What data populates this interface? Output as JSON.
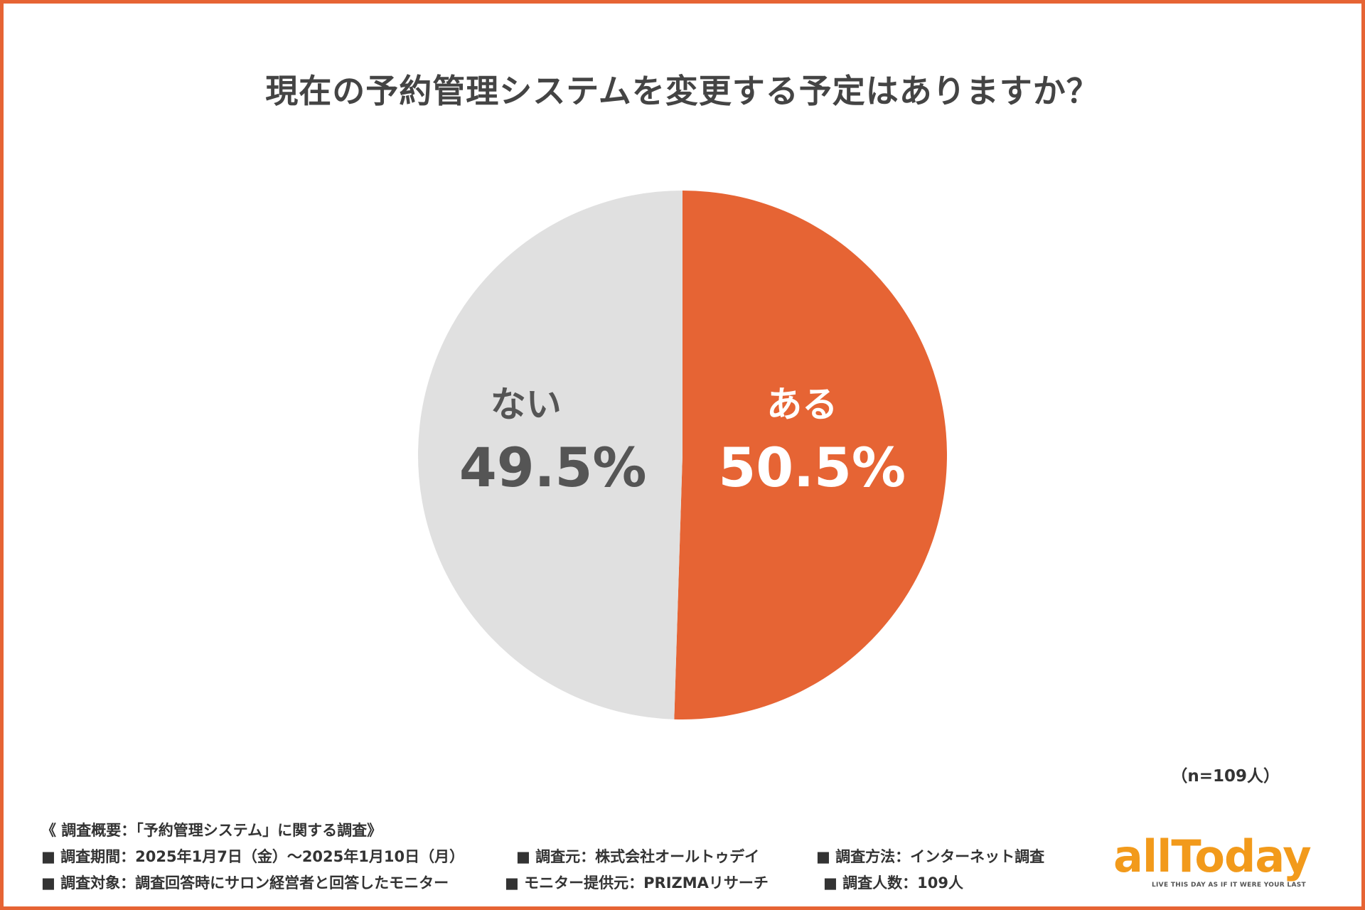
{
  "title": "現在の予約管理システムを変更する予定はありますか？",
  "chart_data": {
    "type": "pie",
    "title": "現在の予約管理システムを変更する予定はありますか？",
    "start": "12 o'clock, clockwise",
    "slices": [
      {
        "label": "ある",
        "value": 50.5,
        "display": "50.5%",
        "color": "#e66434",
        "label_color": "#ffffff"
      },
      {
        "label": "ない",
        "value": 49.5,
        "display": "49.5%",
        "color": "#e0e0e0",
        "label_color": "#555555"
      }
    ]
  },
  "sample_size": "（n=109人）",
  "notes": {
    "heading": "《 調査概要：「予約管理システム」に関する調査》",
    "period": "■ 調査期間：2025年1月7日（金）～2025年1月10日（月）",
    "source": "■ 調査元：株式会社オールトゥデイ",
    "method": "■ 調査方法：インターネット調査",
    "target": "■ 調査対象：調査回答時にサロン経営者と回答したモニター",
    "provider": "■ モニター提供元：PRIZMAリサーチ",
    "count": "■ 調査人数：109人"
  },
  "logo": {
    "text": "allToday",
    "tagline": "LIVE THIS DAY AS IF IT WERE YOUR LAST",
    "color": "#f29a1b"
  },
  "colors": {
    "accent": "#e66434",
    "border": "#e66434"
  }
}
